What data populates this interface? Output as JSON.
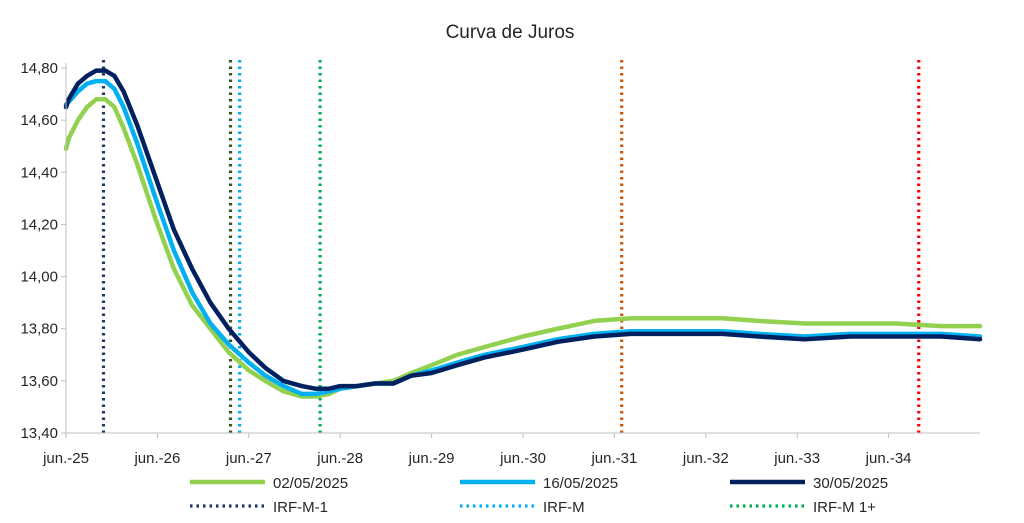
{
  "chart_data": {
    "type": "line",
    "title": "Curva de Juros",
    "xlabel": "",
    "ylabel": "",
    "x_range": [
      2025.42,
      2035.42
    ],
    "ylim": [
      13.4,
      14.85
    ],
    "y_ticks": [
      "13,40",
      "13,60",
      "13,80",
      "14,00",
      "14,20",
      "14,40",
      "14,60",
      "14,80"
    ],
    "y_tick_values": [
      13.4,
      13.6,
      13.8,
      14.0,
      14.2,
      14.4,
      14.6,
      14.8
    ],
    "x_ticks": [
      "jun.-25",
      "jun.-26",
      "jun.-27",
      "jun.-28",
      "jun.-29",
      "jun.-30",
      "jun.-31",
      "jun.-32",
      "jun.-33",
      "jun.-34"
    ],
    "x_tick_values": [
      2025.42,
      2026.42,
      2027.42,
      2028.42,
      2029.42,
      2030.42,
      2031.42,
      2032.42,
      2033.42,
      2034.42
    ],
    "grid": false,
    "legend_position": "bottom",
    "series": [
      {
        "name": "02/05/2025",
        "color": "#92d050",
        "x": [
          2025.42,
          2025.45,
          2025.55,
          2025.65,
          2025.75,
          2025.85,
          2025.95,
          2026.05,
          2026.2,
          2026.4,
          2026.6,
          2026.8,
          2027.0,
          2027.2,
          2027.42,
          2027.6,
          2027.8,
          2028.0,
          2028.15,
          2028.3,
          2028.42,
          2028.6,
          2028.8,
          2029.0,
          2029.2,
          2029.42,
          2029.7,
          2030.0,
          2030.42,
          2030.8,
          2031.2,
          2031.6,
          2032.0,
          2032.6,
          2033.0,
          2033.5,
          2034.0,
          2034.5,
          2035.0,
          2035.42
        ],
        "y": [
          14.49,
          14.53,
          14.6,
          14.65,
          14.68,
          14.68,
          14.65,
          14.57,
          14.43,
          14.22,
          14.03,
          13.89,
          13.8,
          13.71,
          13.64,
          13.6,
          13.56,
          13.54,
          13.54,
          13.55,
          13.57,
          13.58,
          13.59,
          13.6,
          13.63,
          13.66,
          13.7,
          13.73,
          13.77,
          13.8,
          13.83,
          13.84,
          13.84,
          13.84,
          13.83,
          13.82,
          13.82,
          13.82,
          13.81,
          13.81
        ]
      },
      {
        "name": "16/05/2025",
        "color": "#00b0f0",
        "x": [
          2025.42,
          2025.45,
          2025.55,
          2025.65,
          2025.75,
          2025.85,
          2025.95,
          2026.05,
          2026.2,
          2026.4,
          2026.6,
          2026.8,
          2027.0,
          2027.2,
          2027.42,
          2027.6,
          2027.8,
          2028.0,
          2028.15,
          2028.3,
          2028.42,
          2028.6,
          2028.8,
          2029.0,
          2029.2,
          2029.42,
          2029.7,
          2030.0,
          2030.42,
          2030.8,
          2031.2,
          2031.6,
          2032.0,
          2032.6,
          2033.0,
          2033.5,
          2034.0,
          2034.5,
          2035.0,
          2035.42
        ],
        "y": [
          14.66,
          14.67,
          14.71,
          14.74,
          14.75,
          14.75,
          14.72,
          14.65,
          14.51,
          14.3,
          14.1,
          13.94,
          13.82,
          13.74,
          13.67,
          13.62,
          13.58,
          13.55,
          13.55,
          13.56,
          13.57,
          13.58,
          13.59,
          13.59,
          13.62,
          13.64,
          13.67,
          13.7,
          13.73,
          13.76,
          13.78,
          13.79,
          13.79,
          13.79,
          13.78,
          13.77,
          13.78,
          13.78,
          13.78,
          13.77
        ]
      },
      {
        "name": "30/05/2025",
        "color": "#002060",
        "x": [
          2025.42,
          2025.45,
          2025.55,
          2025.65,
          2025.75,
          2025.85,
          2025.95,
          2026.05,
          2026.2,
          2026.4,
          2026.6,
          2026.8,
          2027.0,
          2027.2,
          2027.42,
          2027.6,
          2027.8,
          2028.0,
          2028.15,
          2028.3,
          2028.42,
          2028.6,
          2028.8,
          2029.0,
          2029.2,
          2029.42,
          2029.7,
          2030.0,
          2030.42,
          2030.8,
          2031.2,
          2031.6,
          2032.0,
          2032.6,
          2033.0,
          2033.5,
          2034.0,
          2034.5,
          2035.0,
          2035.42
        ],
        "y": [
          14.65,
          14.68,
          14.74,
          14.77,
          14.79,
          14.79,
          14.77,
          14.71,
          14.58,
          14.38,
          14.18,
          14.03,
          13.9,
          13.8,
          13.71,
          13.65,
          13.6,
          13.58,
          13.57,
          13.57,
          13.58,
          13.58,
          13.59,
          13.59,
          13.62,
          13.63,
          13.66,
          13.69,
          13.72,
          13.75,
          13.77,
          13.78,
          13.78,
          13.78,
          13.77,
          13.76,
          13.77,
          13.77,
          13.77,
          13.76
        ]
      }
    ],
    "vertical_markers": [
      {
        "name": "IRF-M-1",
        "x": 2025.83,
        "color": "#1f3864",
        "in_legend": true
      },
      {
        "name": "",
        "x": 2027.22,
        "color": "#375623",
        "in_legend": false
      },
      {
        "name": "IRF-M",
        "x": 2027.32,
        "color": "#00b0f0",
        "in_legend": true
      },
      {
        "name": "IRF-M 1+",
        "x": 2028.2,
        "color": "#00b050",
        "in_legend": true
      },
      {
        "name": "",
        "x": 2031.5,
        "color": "#c55a11",
        "in_legend": false
      },
      {
        "name": "",
        "x": 2034.75,
        "color": "#ff0000",
        "in_legend": false
      }
    ]
  }
}
